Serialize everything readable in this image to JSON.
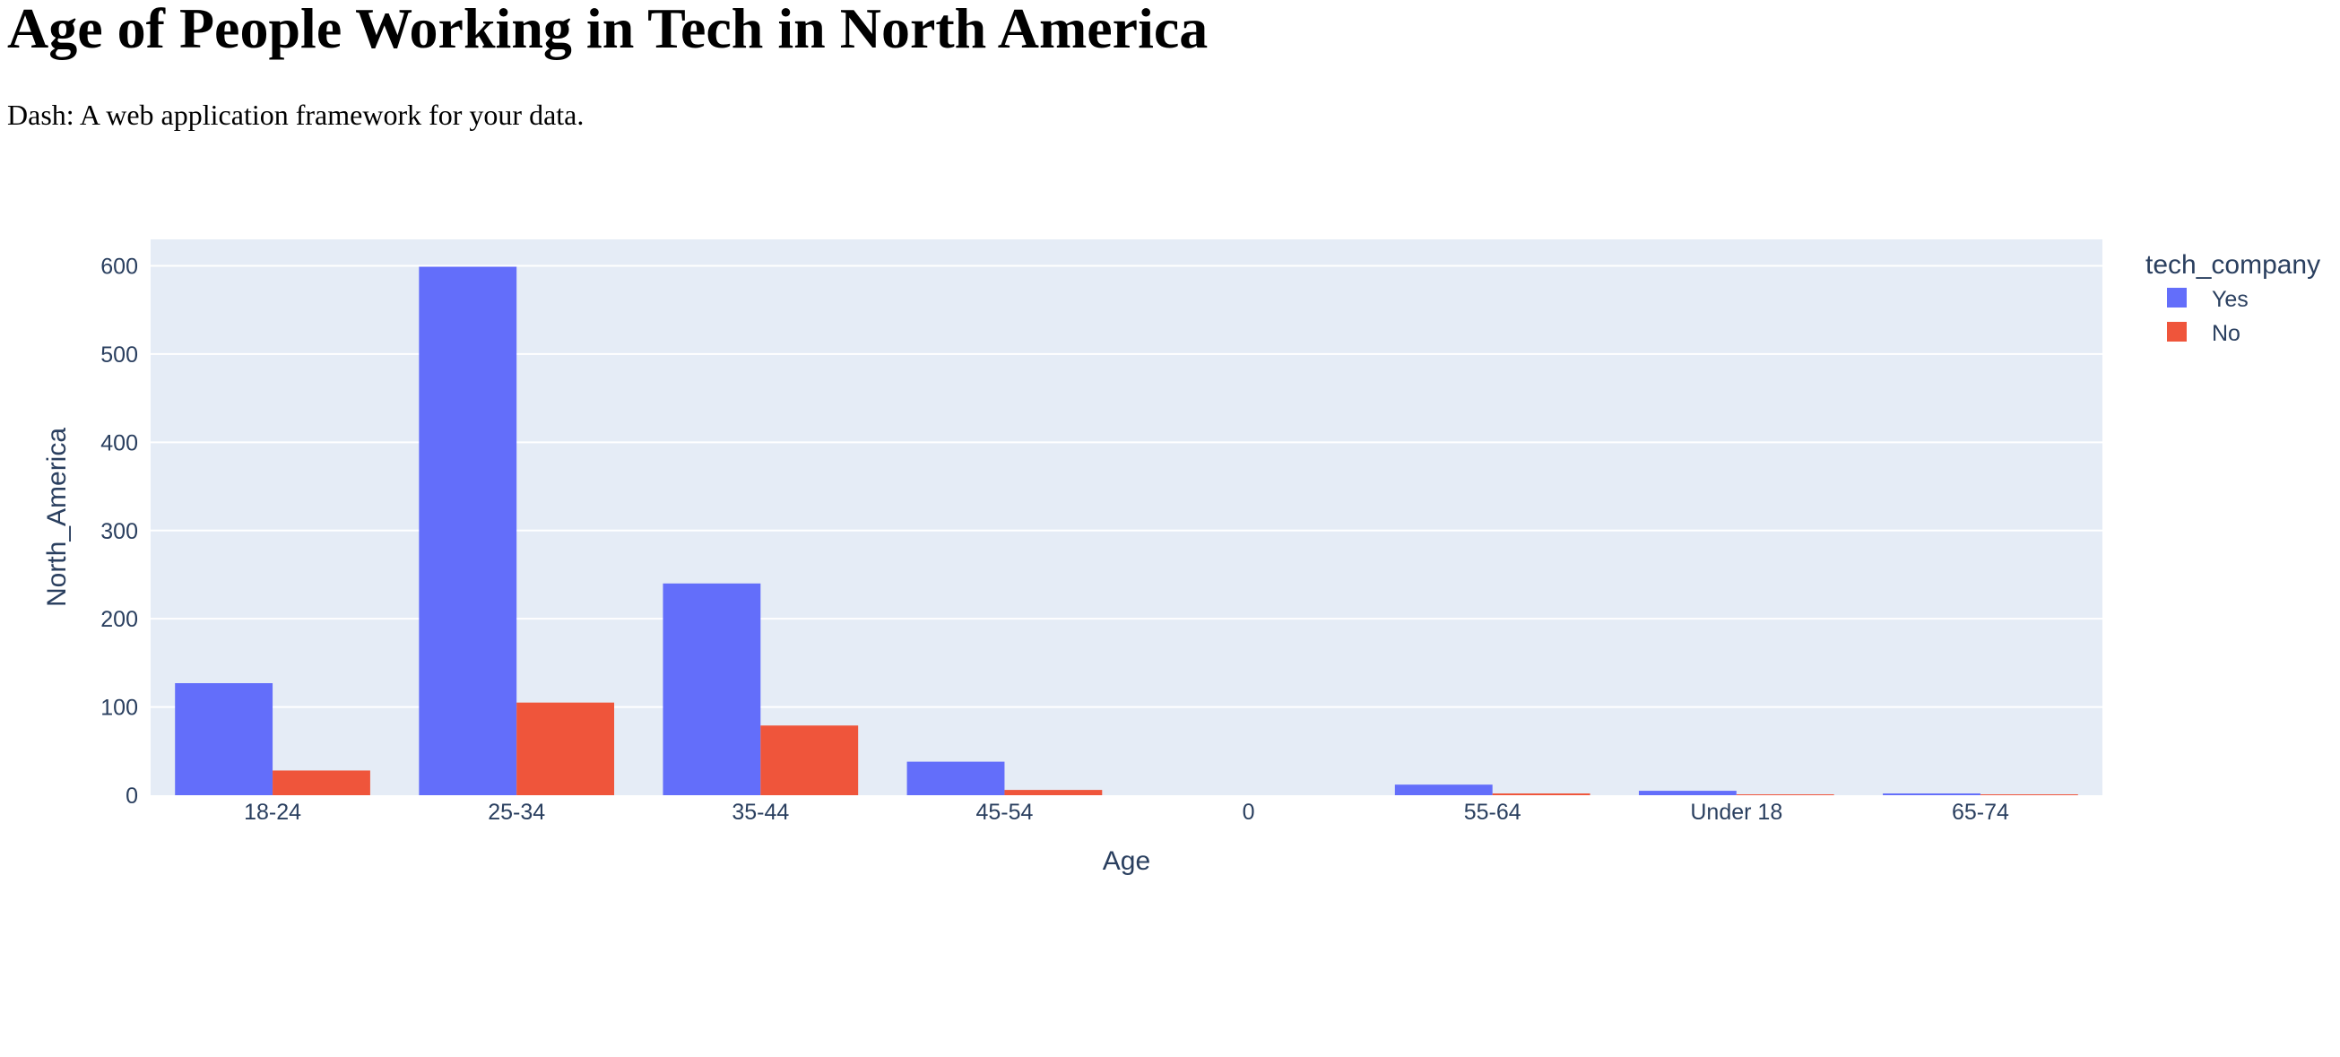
{
  "page": {
    "title": "Age of People Working in Tech in North America",
    "subtitle": "Dash: A web application framework for your data."
  },
  "chart_data": {
    "type": "bar",
    "barmode": "group",
    "categories": [
      "18-24",
      "25-34",
      "35-44",
      "45-54",
      "0",
      "55-64",
      "Under 18",
      "65-74"
    ],
    "series": [
      {
        "name": "Yes",
        "color": "#636efa",
        "values": [
          127,
          599,
          240,
          38,
          0,
          12,
          5,
          2
        ]
      },
      {
        "name": "No",
        "color": "#ef553b",
        "values": [
          28,
          105,
          79,
          6,
          0,
          2,
          1,
          1
        ]
      }
    ],
    "xlabel": "Age",
    "ylabel": "North_America",
    "ylim": [
      0,
      630
    ],
    "yticks": [
      0,
      100,
      200,
      300,
      400,
      500,
      600
    ],
    "grid": true,
    "plot_bg": "#e5ecf6",
    "legend": {
      "title": "tech_company",
      "placement": "top-right"
    }
  }
}
